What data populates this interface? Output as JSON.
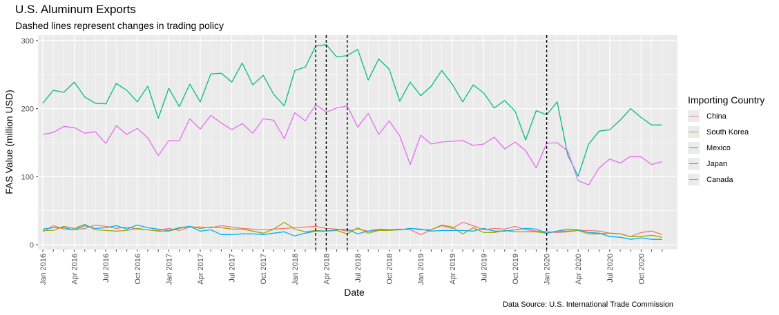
{
  "title": "U.S. Aluminum Exports",
  "subtitle": "Dashed lines represent changes in trading policy",
  "caption": "Data Source: U.S. International Trade Commission",
  "legend_title": "Importing Country",
  "colors": {
    "China": "#F8766D",
    "South Korea": "#A3A500",
    "Mexico": "#00BF7D",
    "Japan": "#00B0F6",
    "Canada": "#E76BF3",
    "panel": "#ebebeb",
    "grid": "#ffffff"
  },
  "chart_data": {
    "type": "line",
    "xlabel": "Date",
    "ylabel": "FAS Value (million USD)",
    "ylim": [
      -7,
      308
    ],
    "yticks": [
      0,
      100,
      200,
      300
    ],
    "xticks": [
      "Jan 2016",
      "Apr 2016",
      "Jul 2016",
      "Oct 2016",
      "Jan 2017",
      "Apr 2017",
      "Jul 2017",
      "Oct 2017",
      "Jan 2018",
      "Apr 2018",
      "Jul 2018",
      "Oct 2018",
      "Jan 2019",
      "Apr 2019",
      "Jul 2019",
      "Oct 2019",
      "Jan 2020",
      "Apr 2020",
      "Jul 2020",
      "Oct 2020"
    ],
    "x": [
      "2016-01",
      "2016-02",
      "2016-03",
      "2016-04",
      "2016-05",
      "2016-06",
      "2016-07",
      "2016-08",
      "2016-09",
      "2016-10",
      "2016-11",
      "2016-12",
      "2017-01",
      "2017-02",
      "2017-03",
      "2017-04",
      "2017-05",
      "2017-06",
      "2017-07",
      "2017-08",
      "2017-09",
      "2017-10",
      "2017-11",
      "2017-12",
      "2018-01",
      "2018-02",
      "2018-03",
      "2018-04",
      "2018-05",
      "2018-06",
      "2018-07",
      "2018-08",
      "2018-09",
      "2018-10",
      "2018-11",
      "2018-12",
      "2019-01",
      "2019-02",
      "2019-03",
      "2019-04",
      "2019-05",
      "2019-06",
      "2019-07",
      "2019-08",
      "2019-09",
      "2019-10",
      "2019-11",
      "2019-12",
      "2020-01",
      "2020-02",
      "2020-03",
      "2020-04",
      "2020-05",
      "2020-06",
      "2020-07",
      "2020-08",
      "2020-09",
      "2020-10",
      "2020-11",
      "2020-12"
    ],
    "vlines": [
      "2018-03",
      "2018-04",
      "2018-06",
      "2020-01"
    ],
    "grid": true,
    "legend_position": "right",
    "series": [
      {
        "name": "China",
        "values": [
          19,
          28,
          23,
          22,
          24,
          29,
          27,
          24,
          26,
          23,
          22,
          21,
          24,
          21,
          26,
          26,
          25,
          28,
          26,
          24,
          23,
          22,
          23,
          24,
          25,
          26,
          27,
          24,
          23,
          20,
          23,
          20,
          21,
          22,
          23,
          22,
          15,
          22,
          28,
          24,
          33,
          28,
          22,
          24,
          23,
          27,
          22,
          20,
          19,
          18,
          19,
          21,
          21,
          20,
          17,
          16,
          12,
          18,
          20,
          15
        ]
      },
      {
        "name": "South Korea",
        "values": [
          21,
          21,
          27,
          24,
          30,
          22,
          21,
          20,
          21,
          24,
          22,
          20,
          20,
          24,
          27,
          24,
          26,
          25,
          23,
          23,
          20,
          17,
          23,
          33,
          23,
          19,
          21,
          20,
          21,
          16,
          25,
          17,
          21,
          21,
          22,
          24,
          22,
          22,
          29,
          26,
          16,
          25,
          18,
          18,
          21,
          19,
          19,
          19,
          17,
          20,
          20,
          21,
          16,
          16,
          17,
          16,
          12,
          12,
          14,
          11
        ]
      },
      {
        "name": "Mexico",
        "values": [
          208,
          227,
          224,
          239,
          217,
          208,
          207,
          237,
          227,
          210,
          233,
          186,
          230,
          203,
          236,
          210,
          251,
          252,
          239,
          267,
          235,
          249,
          221,
          204,
          256,
          261,
          292,
          294,
          276,
          278,
          287,
          242,
          273,
          258,
          211,
          239,
          219,
          233,
          256,
          236,
          210,
          235,
          223,
          201,
          212,
          196,
          154,
          197,
          191,
          210,
          132,
          101,
          148,
          167,
          169,
          183,
          200,
          187,
          176,
          176
        ]
      },
      {
        "name": "Japan",
        "values": [
          23,
          25,
          25,
          22,
          28,
          24,
          25,
          28,
          23,
          29,
          25,
          23,
          21,
          25,
          27,
          20,
          22,
          15,
          15,
          16,
          16,
          15,
          17,
          19,
          13,
          17,
          20,
          20,
          22,
          23,
          16,
          20,
          23,
          22,
          22,
          24,
          23,
          20,
          21,
          21,
          21,
          20,
          24,
          20,
          20,
          22,
          24,
          23,
          17,
          20,
          23,
          22,
          18,
          17,
          12,
          11,
          8,
          10,
          8,
          8
        ]
      },
      {
        "name": "Canada",
        "values": [
          162,
          165,
          174,
          172,
          164,
          166,
          149,
          175,
          162,
          171,
          157,
          131,
          153,
          153,
          185,
          170,
          190,
          179,
          169,
          178,
          164,
          185,
          183,
          156,
          194,
          182,
          206,
          195,
          201,
          204,
          173,
          193,
          162,
          182,
          160,
          118,
          161,
          148,
          151,
          152,
          153,
          146,
          148,
          158,
          141,
          151,
          138,
          113,
          149,
          150,
          138,
          94,
          88,
          113,
          126,
          120,
          130,
          129,
          118,
          122
        ]
      }
    ]
  }
}
